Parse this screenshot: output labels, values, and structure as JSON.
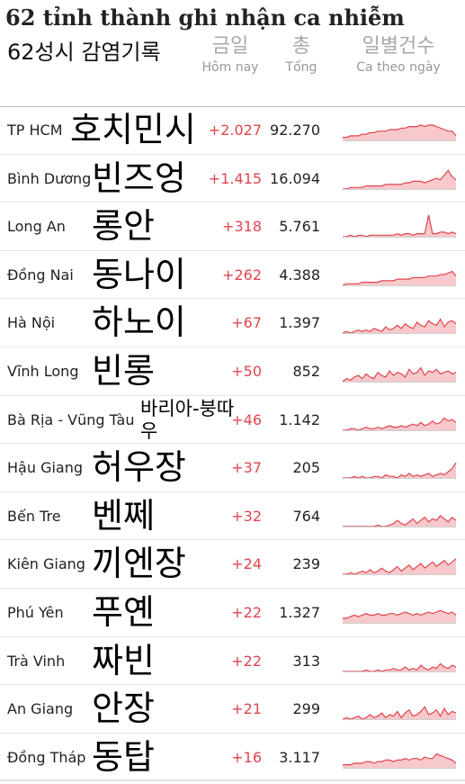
{
  "title": "62 tỉnh thành ghi nhận ca nhiễm",
  "title_ko": "62성시 감염기록",
  "columns": {
    "today_ko": "금일",
    "today_vi": "Hôm nay",
    "total_ko": "총",
    "total_vi": "Tổng",
    "daily_ko": "일별건수",
    "daily_vi": "Ca theo ngày"
  },
  "colors": {
    "accent_red": "#e0454d",
    "spark_fill": "#f7c9cc",
    "spark_line": "#e0454d"
  },
  "rows": [
    {
      "province": "TP HCM",
      "ko": "호치민시",
      "today": "+2.027",
      "total": "92.270",
      "spark": [
        2,
        2,
        3,
        3,
        3,
        4,
        4,
        5,
        5,
        6,
        6,
        6,
        7,
        7,
        7,
        8,
        8,
        9,
        9,
        9,
        10,
        9,
        10,
        10,
        9,
        8,
        7,
        6,
        6,
        3
      ]
    },
    {
      "province": "Bình Dương",
      "ko": "빈즈엉",
      "today": "+1.415",
      "total": "16.094",
      "spark": [
        0,
        0,
        1,
        1,
        1,
        1,
        2,
        2,
        2,
        2,
        2,
        3,
        3,
        3,
        3,
        3,
        4,
        4,
        5,
        5,
        5,
        4,
        5,
        6,
        7,
        6,
        9,
        12,
        8,
        6
      ]
    },
    {
      "province": "Long An",
      "ko": "롱안",
      "today": "+318",
      "total": "5.761",
      "spark": [
        0,
        0,
        1,
        0,
        1,
        1,
        0,
        1,
        1,
        1,
        1,
        1,
        1,
        1,
        2,
        1,
        2,
        2,
        1,
        2,
        2,
        2,
        14,
        2,
        2,
        3,
        3,
        2,
        3,
        2
      ]
    },
    {
      "province": "Đồng Nai",
      "ko": "동나이",
      "today": "+262",
      "total": "4.388",
      "spark": [
        0,
        1,
        1,
        1,
        1,
        2,
        2,
        2,
        2,
        2,
        3,
        3,
        3,
        3,
        4,
        4,
        4,
        4,
        5,
        5,
        5,
        5,
        6,
        6,
        6,
        7,
        7,
        8,
        9,
        6
      ]
    },
    {
      "province": "Hà Nội",
      "ko": "하노이",
      "today": "+67",
      "total": "1.397",
      "spark": [
        0,
        1,
        0,
        1,
        2,
        1,
        2,
        1,
        3,
        2,
        1,
        4,
        2,
        3,
        5,
        3,
        6,
        4,
        3,
        7,
        5,
        4,
        8,
        6,
        5,
        9,
        4,
        7,
        8,
        6
      ]
    },
    {
      "province": "Vĩnh Long",
      "ko": "빈롱",
      "today": "+50",
      "total": "852",
      "spark": [
        0,
        2,
        1,
        3,
        4,
        2,
        5,
        3,
        2,
        6,
        4,
        3,
        7,
        4,
        6,
        5,
        3,
        8,
        5,
        6,
        9,
        4,
        7,
        6,
        8,
        5,
        6,
        7,
        5,
        6
      ]
    },
    {
      "province": "Bà Rịa - Vũng Tàu",
      "ko": "바리아-붕따우",
      "today": "+46",
      "total": "1.142",
      "small": true,
      "spark": [
        0,
        0,
        1,
        1,
        0,
        1,
        2,
        1,
        1,
        2,
        1,
        2,
        3,
        2,
        2,
        3,
        2,
        3,
        4,
        3,
        5,
        3,
        4,
        6,
        4,
        5,
        8,
        6,
        7,
        5
      ]
    },
    {
      "province": "Hậu Giang",
      "ko": "허우장",
      "today": "+37",
      "total": "205",
      "spark": [
        0,
        0,
        0,
        1,
        0,
        1,
        0,
        0,
        1,
        1,
        0,
        2,
        1,
        1,
        0,
        2,
        1,
        3,
        1,
        2,
        1,
        2,
        3,
        1,
        2,
        3,
        2,
        4,
        6,
        10
      ]
    },
    {
      "province": "Bến Tre",
      "ko": "벤쩨",
      "today": "+32",
      "total": "764",
      "spark": [
        0,
        0,
        0,
        0,
        0,
        0,
        0,
        0,
        0,
        1,
        0,
        0,
        1,
        2,
        4,
        2,
        1,
        3,
        5,
        2,
        4,
        6,
        3,
        5,
        4,
        7,
        5,
        3,
        6,
        4
      ]
    },
    {
      "province": "Kiên Giang",
      "ko": "끼엔장",
      "today": "+24",
      "total": "239",
      "spark": [
        0,
        0,
        1,
        0,
        1,
        2,
        1,
        3,
        1,
        2,
        4,
        2,
        1,
        3,
        5,
        2,
        4,
        6,
        3,
        5,
        7,
        4,
        6,
        8,
        5,
        7,
        9,
        6,
        8,
        10
      ]
    },
    {
      "province": "Phú Yên",
      "ko": "푸옌",
      "today": "+22",
      "total": "1.327",
      "spark": [
        3,
        3,
        4,
        5,
        4,
        5,
        6,
        5,
        5,
        6,
        5,
        5,
        6,
        6,
        5,
        6,
        7,
        6,
        5,
        6,
        5,
        6,
        7,
        6,
        7,
        8,
        7,
        6,
        7,
        5
      ]
    },
    {
      "province": "Trà Vinh",
      "ko": "짜빈",
      "today": "+22",
      "total": "313",
      "spark": [
        0,
        0,
        0,
        0,
        0,
        0,
        1,
        0,
        0,
        1,
        0,
        1,
        1,
        2,
        1,
        1,
        3,
        1,
        2,
        1,
        4,
        2,
        1,
        3,
        2,
        5,
        3,
        2,
        4,
        3
      ]
    },
    {
      "province": "An Giang",
      "ko": "안장",
      "today": "+21",
      "total": "299",
      "spark": [
        0,
        1,
        0,
        1,
        2,
        0,
        1,
        3,
        1,
        2,
        4,
        1,
        3,
        2,
        5,
        1,
        4,
        6,
        2,
        3,
        5,
        8,
        3,
        4,
        6,
        2,
        7,
        3,
        5,
        4
      ]
    },
    {
      "province": "Đồng Tháp",
      "ko": "동탑",
      "today": "+16",
      "total": "3.117",
      "spark": [
        2,
        2,
        2,
        3,
        3,
        3,
        4,
        4,
        3,
        4,
        4,
        5,
        5,
        4,
        5,
        5,
        6,
        5,
        6,
        6,
        5,
        7,
        6,
        6,
        9,
        8,
        7,
        6,
        5,
        3
      ]
    }
  ]
}
